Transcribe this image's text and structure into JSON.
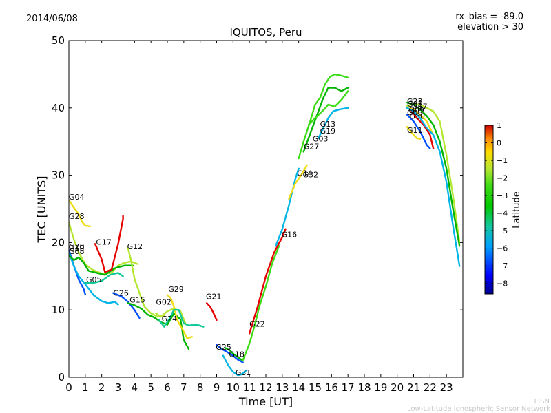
{
  "chart_data": {
    "type": "scatter",
    "date": "2014/06/08",
    "title": "IQUITOS, Peru",
    "info": [
      "rx_bias = -89.0",
      "elevation > 30"
    ],
    "xlabel": "Time [UT]",
    "ylabel": "TEC [UNITS]",
    "xlim": [
      0,
      24
    ],
    "ylim": [
      0,
      50
    ],
    "xticks": [
      0,
      1,
      2,
      3,
      4,
      5,
      6,
      7,
      8,
      9,
      10,
      11,
      12,
      13,
      14,
      15,
      16,
      17,
      18,
      19,
      20,
      21,
      22,
      23
    ],
    "yticks": [
      0,
      10,
      20,
      30,
      40,
      50
    ],
    "colorbar": {
      "label": "Latitude",
      "min": -8.6,
      "max": 1.0,
      "ticks": [
        1,
        0,
        -1,
        -2,
        -3,
        -4,
        -5,
        -6,
        -7,
        -8
      ]
    },
    "colors": {
      "lat_-8.5": "#00008f",
      "lat_-7.5": "#0050ff",
      "lat_-6.5": "#00b4e6",
      "lat_-5.5": "#14c896",
      "lat_-4.5": "#00b400",
      "lat_-3.5": "#3cdc14",
      "lat_-2.5": "#b4e632",
      "lat_-1.5": "#f0dc14",
      "lat_-0.5": "#ff9600",
      "lat_0.5": "#e60000"
    },
    "series": [
      {
        "name": "G04",
        "lat": -1.5,
        "label_at": [
          0.0,
          26.2
        ],
        "points": [
          [
            0.0,
            26.3
          ],
          [
            0.3,
            25.2
          ],
          [
            0.6,
            24.2
          ],
          [
            0.8,
            23.1
          ],
          [
            1.0,
            22.5
          ],
          [
            1.3,
            22.4
          ]
        ]
      },
      {
        "name": "G28",
        "lat": -2.5,
        "label_at": [
          0.0,
          23.3
        ],
        "points": [
          [
            0.0,
            23.0
          ],
          [
            0.3,
            20.5
          ],
          [
            0.6,
            18.5
          ],
          [
            1.0,
            16.8
          ],
          [
            1.4,
            16.0
          ],
          [
            2.0,
            15.4
          ],
          [
            2.6,
            15.5
          ],
          [
            3.0,
            16.6
          ],
          [
            3.4,
            17.0
          ],
          [
            3.8,
            17.2
          ],
          [
            4.2,
            16.8
          ]
        ]
      },
      {
        "name": "G10",
        "lat": -7.5,
        "label_at": [
          0.0,
          18.6
        ],
        "points": [
          [
            0.0,
            18.9
          ],
          [
            0.3,
            16.6
          ],
          [
            0.6,
            14.5
          ],
          [
            0.9,
            13.1
          ],
          [
            1.0,
            12.3
          ]
        ]
      },
      {
        "name": "G20",
        "lat": -6.5,
        "label_at": [
          0.0,
          18.8
        ],
        "points": [
          [
            0.0,
            18.6
          ],
          [
            0.3,
            16.5
          ],
          [
            0.6,
            15.0
          ],
          [
            1.0,
            13.8
          ],
          [
            1.5,
            12.2
          ],
          [
            2.0,
            11.3
          ],
          [
            2.4,
            11.0
          ],
          [
            2.8,
            11.2
          ],
          [
            3.0,
            10.8
          ]
        ]
      },
      {
        "name": "G08",
        "lat": -4.5,
        "label_at": [
          0.0,
          18.1
        ],
        "points": [
          [
            0.0,
            18.1
          ],
          [
            0.3,
            17.4
          ],
          [
            0.6,
            17.8
          ],
          [
            0.9,
            17.0
          ],
          [
            1.2,
            15.8
          ],
          [
            1.7,
            15.5
          ],
          [
            2.2,
            15.2
          ],
          [
            2.8,
            16.2
          ],
          [
            3.4,
            16.6
          ],
          [
            3.9,
            16.6
          ]
        ]
      },
      {
        "name": "G05",
        "lat": -5.5,
        "label_at": [
          1.05,
          13.9
        ],
        "points": [
          [
            1.0,
            14.0
          ],
          [
            1.5,
            14.0
          ],
          [
            2.0,
            14.3
          ],
          [
            2.5,
            15.2
          ],
          [
            3.0,
            15.5
          ],
          [
            3.3,
            15.0
          ]
        ]
      },
      {
        "name": "G17",
        "lat": 0.5,
        "label_at": [
          1.65,
          19.5
        ],
        "points": [
          [
            1.6,
            19.8
          ],
          [
            2.0,
            17.5
          ],
          [
            2.2,
            15.6
          ],
          [
            2.6,
            16.0
          ],
          [
            3.0,
            19.8
          ],
          [
            3.3,
            23.5
          ],
          [
            3.3,
            24.0
          ]
        ]
      },
      {
        "name": "G12",
        "lat": -2.5,
        "label_at": [
          3.55,
          18.8
        ],
        "points": [
          [
            3.6,
            19.2
          ],
          [
            3.8,
            17.2
          ],
          [
            4.0,
            14.6
          ],
          [
            4.3,
            12.5
          ],
          [
            4.6,
            10.5
          ],
          [
            5.0,
            9.5
          ],
          [
            5.4,
            9.0
          ],
          [
            5.8,
            9.2
          ]
        ]
      },
      {
        "name": "G26",
        "lat": -7.5,
        "label_at": [
          2.7,
          11.9
        ],
        "points": [
          [
            2.7,
            12.5
          ],
          [
            3.2,
            12.0
          ],
          [
            3.6,
            11.2
          ],
          [
            4.0,
            10.0
          ],
          [
            4.3,
            8.8
          ]
        ]
      },
      {
        "name": "G15",
        "lat": -4.5,
        "label_at": [
          3.7,
          10.9
        ],
        "points": [
          [
            3.6,
            11.0
          ],
          [
            4.0,
            10.7
          ],
          [
            4.4,
            10.2
          ],
          [
            4.8,
            9.3
          ],
          [
            5.2,
            8.9
          ],
          [
            5.6,
            8.2
          ],
          [
            6.0,
            7.8
          ],
          [
            6.4,
            9.5
          ],
          [
            6.8,
            8.6
          ],
          [
            7.0,
            5.5
          ],
          [
            7.3,
            4.2
          ]
        ]
      },
      {
        "name": "G02",
        "lat": -2.5,
        "label_at": [
          5.3,
          10.6
        ],
        "points": [
          [
            5.3,
            9.5
          ],
          [
            5.6,
            9.0
          ],
          [
            6.0,
            9.8
          ],
          [
            6.4,
            10.2
          ],
          [
            6.8,
            9.8
          ],
          [
            7.1,
            8.0
          ]
        ]
      },
      {
        "name": "G29",
        "lat": -1.5,
        "label_at": [
          6.05,
          12.5
        ],
        "points": [
          [
            6.0,
            12.2
          ],
          [
            6.2,
            11.8
          ],
          [
            6.4,
            10.5
          ],
          [
            6.6,
            8.5
          ],
          [
            6.9,
            7.2
          ],
          [
            7.2,
            5.8
          ],
          [
            7.5,
            6.0
          ]
        ]
      },
      {
        "name": "G24",
        "lat": -5.5,
        "label_at": [
          5.65,
          8.1
        ],
        "points": [
          [
            5.5,
            8.5
          ],
          [
            5.8,
            7.5
          ],
          [
            6.1,
            8.6
          ],
          [
            6.4,
            10.0
          ],
          [
            6.7,
            10.0
          ],
          [
            7.0,
            8.0
          ],
          [
            7.3,
            7.7
          ],
          [
            7.8,
            7.8
          ],
          [
            8.2,
            7.5
          ]
        ]
      },
      {
        "name": "G21",
        "lat": 0.5,
        "label_at": [
          8.35,
          11.4
        ],
        "points": [
          [
            8.4,
            11.0
          ],
          [
            8.6,
            10.5
          ],
          [
            8.8,
            9.6
          ],
          [
            9.0,
            8.5
          ]
        ]
      },
      {
        "name": "G25",
        "lat": -7.5,
        "label_at": [
          8.95,
          3.9
        ],
        "points": [
          [
            9.0,
            4.8
          ],
          [
            9.3,
            4.2
          ],
          [
            9.6,
            3.8
          ],
          [
            10.0,
            3.2
          ],
          [
            10.3,
            2.6
          ],
          [
            10.6,
            2.2
          ]
        ]
      },
      {
        "name": "G18",
        "lat": -4.5,
        "label_at": [
          9.75,
          2.8
        ],
        "points": [
          [
            9.5,
            4.4
          ],
          [
            9.8,
            4.0
          ],
          [
            10.0,
            3.5
          ],
          [
            10.3,
            3.0
          ],
          [
            10.5,
            2.6
          ]
        ]
      },
      {
        "name": "G31",
        "lat": -6.5,
        "label_at": [
          10.15,
          0.1
        ],
        "points": [
          [
            9.4,
            3.2
          ],
          [
            9.7,
            1.8
          ],
          [
            10.0,
            0.8
          ],
          [
            10.3,
            0.3
          ],
          [
            10.5,
            0.4
          ],
          [
            10.8,
            1.0
          ]
        ]
      },
      {
        "name": "G22",
        "lat": -3.5,
        "label_at": [
          11.0,
          7.3
        ],
        "points": [
          [
            10.6,
            2.5
          ],
          [
            11.0,
            5.0
          ],
          [
            11.3,
            7.5
          ],
          [
            11.6,
            10.5
          ],
          [
            12.0,
            13.5
          ],
          [
            12.4,
            17.0
          ],
          [
            12.8,
            19.5
          ]
        ]
      },
      {
        "name": "G16",
        "lat": 0.5,
        "label_at": [
          12.95,
          20.6
        ],
        "points": [
          [
            11.0,
            6.5
          ],
          [
            11.5,
            10.5
          ],
          [
            12.0,
            15.0
          ],
          [
            12.5,
            18.5
          ],
          [
            13.0,
            20.8
          ],
          [
            13.2,
            22.0
          ]
        ]
      },
      {
        "name": "G14",
        "lat": -6.5,
        "label_at": [
          13.9,
          29.7
        ],
        "points": [
          [
            12.6,
            19.5
          ],
          [
            13.0,
            22.0
          ],
          [
            13.4,
            25.5
          ],
          [
            13.8,
            29.5
          ],
          [
            14.0,
            31.0
          ]
        ]
      },
      {
        "name": "G32",
        "lat": -1.5,
        "label_at": [
          14.25,
          29.5
        ],
        "points": [
          [
            13.4,
            26.5
          ],
          [
            13.8,
            28.8
          ],
          [
            14.2,
            30.2
          ],
          [
            14.5,
            31.5
          ]
        ]
      },
      {
        "name": "G27",
        "lat": -3.5,
        "label_at": [
          14.3,
          33.7
        ],
        "points": [
          [
            14.0,
            32.5
          ],
          [
            14.3,
            35.0
          ],
          [
            14.7,
            38.0
          ],
          [
            15.0,
            40.5
          ],
          [
            15.3,
            41.5
          ],
          [
            15.6,
            43.5
          ],
          [
            15.9,
            44.6
          ],
          [
            16.2,
            45.0
          ],
          [
            16.6,
            44.8
          ],
          [
            17.0,
            44.5
          ]
        ]
      },
      {
        "name": "G03",
        "lat": -4.5,
        "label_at": [
          14.85,
          34.8
        ],
        "points": [
          [
            14.3,
            33.5
          ],
          [
            14.6,
            35.5
          ],
          [
            14.9,
            37.5
          ],
          [
            15.2,
            39.5
          ],
          [
            15.5,
            41.5
          ],
          [
            15.8,
            43.0
          ],
          [
            16.2,
            43.0
          ],
          [
            16.6,
            42.5
          ],
          [
            17.0,
            43.0
          ]
        ]
      },
      {
        "name": "G19",
        "lat": -6.5,
        "label_at": [
          15.3,
          36.0
        ],
        "points": [
          [
            15.2,
            35.5
          ],
          [
            15.5,
            37.0
          ],
          [
            15.8,
            38.5
          ],
          [
            16.1,
            39.5
          ],
          [
            16.5,
            39.8
          ],
          [
            17.0,
            40.0
          ]
        ]
      },
      {
        "name": "G13",
        "lat": -3.5,
        "label_at": [
          15.3,
          37.0
        ],
        "points": [
          [
            14.6,
            37.5
          ],
          [
            15.0,
            38.5
          ],
          [
            15.3,
            39.2
          ],
          [
            15.6,
            39.9
          ],
          [
            15.8,
            40.5
          ],
          [
            16.2,
            40.2
          ],
          [
            16.6,
            41.2
          ],
          [
            17.0,
            42.5
          ]
        ]
      },
      {
        "name": "G01",
        "lat": -2.5,
        "label_at": [
          20.6,
          40.0
        ],
        "points": [
          [
            20.6,
            40.3
          ],
          [
            21.0,
            40.6
          ],
          [
            21.4,
            40.5
          ],
          [
            21.8,
            40.0
          ],
          [
            22.2,
            39.5
          ],
          [
            22.6,
            38.0
          ],
          [
            23.0,
            33.0
          ],
          [
            23.4,
            27.0
          ],
          [
            23.8,
            20.0
          ]
        ]
      },
      {
        "name": "G23",
        "lat": -4.5,
        "label_at": [
          20.6,
          40.4
        ],
        "points": [
          [
            20.6,
            40.8
          ],
          [
            21.0,
            40.5
          ],
          [
            21.4,
            39.8
          ],
          [
            21.8,
            38.8
          ],
          [
            22.2,
            37.5
          ],
          [
            22.6,
            35.0
          ],
          [
            23.0,
            31.0
          ],
          [
            23.4,
            25.0
          ],
          [
            23.8,
            19.5
          ]
        ]
      },
      {
        "name": "G07",
        "lat": -1.5,
        "label_at": [
          20.9,
          39.6
        ],
        "points": [
          [
            20.6,
            40.0
          ],
          [
            21.0,
            39.8
          ],
          [
            21.4,
            39.0
          ],
          [
            21.8,
            38.0
          ],
          [
            22.2,
            36.0
          ]
        ]
      },
      {
        "name": "G09",
        "lat": 0.5,
        "label_at": [
          20.7,
          39.1
        ],
        "points": [
          [
            20.8,
            39.8
          ],
          [
            21.2,
            38.5
          ],
          [
            21.6,
            37.5
          ],
          [
            22.0,
            36.0
          ],
          [
            22.2,
            34.0
          ]
        ]
      },
      {
        "name": "G11",
        "lat": -1.5,
        "label_at": [
          20.6,
          36.1
        ],
        "points": [
          [
            20.6,
            37.2
          ],
          [
            20.8,
            36.6
          ],
          [
            21.0,
            36.0
          ],
          [
            21.2,
            35.5
          ],
          [
            21.4,
            35.4
          ]
        ]
      },
      {
        "name": "G30",
        "lat": -7.5,
        "label_at": [
          20.75,
          38.2
        ],
        "points": [
          [
            20.6,
            39.0
          ],
          [
            21.0,
            38.0
          ],
          [
            21.4,
            36.5
          ],
          [
            21.8,
            34.5
          ],
          [
            22.0,
            34.0
          ]
        ]
      },
      {
        "name": "G06",
        "lat": -6.5,
        "label_at": [
          20.6,
          38.7
        ],
        "points": [
          [
            20.6,
            40.0
          ],
          [
            21.0,
            39.5
          ],
          [
            21.4,
            38.5
          ],
          [
            21.8,
            37.0
          ],
          [
            22.2,
            36.0
          ],
          [
            22.6,
            33.5
          ],
          [
            23.0,
            29.0
          ],
          [
            23.4,
            22.5
          ],
          [
            23.8,
            16.5
          ]
        ]
      }
    ]
  },
  "footer": {
    "org_short": "LISN",
    "org_long": "Low-Latitude Ionospheric Sensor Network"
  }
}
